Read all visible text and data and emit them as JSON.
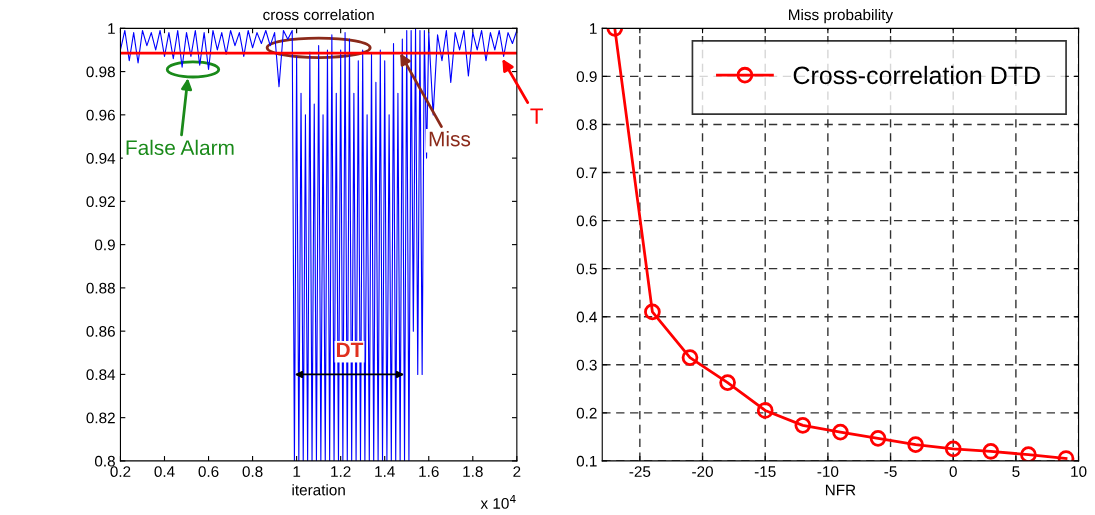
{
  "chart_data": [
    {
      "type": "line",
      "title": "cross correlation",
      "xlabel": "iteration",
      "series": [
        {
          "color": "#0000ff",
          "marker": "none",
          "x": [
            0.2,
            0.22,
            0.24,
            0.26,
            0.28,
            0.3,
            0.32,
            0.34,
            0.36,
            0.38,
            0.4,
            0.42,
            0.44,
            0.46,
            0.48,
            0.5,
            0.52,
            0.54,
            0.56,
            0.58,
            0.6,
            0.62,
            0.64,
            0.66,
            0.68,
            0.7,
            0.72,
            0.74,
            0.76,
            0.78,
            0.8,
            0.82,
            0.84,
            0.86,
            0.88,
            0.9,
            0.92,
            0.94,
            0.96,
            0.98,
            0.99,
            1.0,
            1.01,
            1.02,
            1.03,
            1.04,
            1.05,
            1.06,
            1.07,
            1.08,
            1.09,
            1.1,
            1.11,
            1.12,
            1.13,
            1.14,
            1.15,
            1.16,
            1.17,
            1.18,
            1.19,
            1.2,
            1.21,
            1.22,
            1.23,
            1.24,
            1.25,
            1.26,
            1.27,
            1.28,
            1.29,
            1.3,
            1.31,
            1.32,
            1.33,
            1.34,
            1.35,
            1.36,
            1.37,
            1.38,
            1.39,
            1.4,
            1.41,
            1.42,
            1.43,
            1.44,
            1.45,
            1.46,
            1.47,
            1.48,
            1.49,
            1.5,
            1.51,
            1.52,
            1.53,
            1.54,
            1.55,
            1.56,
            1.57,
            1.58,
            1.59,
            1.6,
            1.62,
            1.64,
            1.66,
            1.68,
            1.7,
            1.72,
            1.74,
            1.76,
            1.78,
            1.8,
            1.82,
            1.84,
            1.86,
            1.88,
            1.9,
            1.92,
            1.94,
            1.96,
            1.98,
            2.0
          ],
          "values": [
            0.99,
            0.999,
            0.985,
            0.998,
            0.984,
            0.999,
            0.992,
            0.998,
            0.99,
            0.999,
            0.987,
            0.998,
            0.986,
            0.999,
            0.982,
            0.998,
            0.987,
            0.999,
            0.983,
            0.998,
            0.981,
            0.999,
            0.99,
            0.998,
            0.988,
            0.999,
            0.992,
            0.998,
            0.987,
            0.999,
            0.991,
            0.998,
            0.993,
            0.999,
            0.992,
            0.998,
            0.973,
            0.999,
            0.995,
            0.999,
            0.8,
            0.987,
            0.8,
            0.97,
            0.8,
            0.96,
            0.8,
            0.989,
            0.8,
            0.965,
            0.8,
            0.992,
            0.8,
            0.96,
            0.8,
            0.99,
            0.8,
            0.997,
            0.8,
            0.97,
            0.8,
            0.99,
            0.8,
            0.998,
            0.8,
            0.995,
            0.8,
            0.97,
            0.8,
            0.985,
            0.8,
            0.99,
            0.8,
            0.96,
            0.8,
            0.988,
            0.8,
            0.975,
            0.8,
            0.99,
            0.8,
            0.985,
            0.8,
            0.96,
            0.8,
            0.993,
            0.8,
            0.97,
            0.8,
            0.995,
            0.8,
            0.999,
            0.8,
            0.999,
            0.86,
            1.0,
            0.84,
            0.999,
            0.84,
            0.999,
            0.94,
            0.998,
            0.96,
            0.997,
            0.985,
            0.999,
            0.975,
            0.998,
            0.99,
            0.999,
            0.978,
            0.998,
            0.99,
            0.999,
            0.985,
            0.998,
            0.99,
            0.999,
            0.987,
            0.998,
            0.993,
            0.999
          ]
        }
      ],
      "xlim": [
        0.2,
        2
      ],
      "xticks": [
        0.2,
        0.4,
        0.6,
        0.8,
        1,
        1.2,
        1.4,
        1.6,
        1.8,
        2
      ],
      "ylim": [
        0.8,
        1
      ],
      "yticks": [
        0.8,
        0.82,
        0.84,
        0.86,
        0.88,
        0.9,
        0.92,
        0.94,
        0.96,
        0.98,
        1
      ],
      "ref_lines": [
        {
          "axis": "y",
          "value": 0.9885,
          "label": "T",
          "color": "#ff0000"
        }
      ],
      "annotations": [
        "False Alarm",
        {
          "text": "Miss",
          "x": 1.47,
          "y": 0.9885
        },
        {
          "text": "DT",
          "x": 1.24,
          "y": 0.84
        },
        "x 10$^{4}$"
      ],
      "grid": false,
      "legend": false
    },
    {
      "type": "line",
      "title": "Miss probability",
      "xlabel": "NFR",
      "series": [
        {
          "name": "Cross-correlation DTD",
          "color": "#ff0000",
          "marker": "circle",
          "x": [
            -27,
            -24,
            -21,
            -18,
            -15,
            -12,
            -9,
            -6,
            -3,
            0,
            3,
            6,
            9
          ],
          "values": [
            1.0,
            0.41,
            0.315,
            0.263,
            0.205,
            0.174,
            0.16,
            0.147,
            0.134,
            0.125,
            0.12,
            0.113,
            0.105
          ]
        }
      ],
      "xlim": [
        -28,
        10
      ],
      "xticks": [
        -25,
        -20,
        -15,
        -10,
        -5,
        0,
        5,
        10
      ],
      "ylim": [
        0.1,
        1
      ],
      "yticks": [
        0.1,
        0.2,
        0.3,
        0.4,
        0.5,
        0.6,
        0.7,
        0.8,
        0.9,
        1
      ],
      "grid": true,
      "legend": "top right"
    }
  ]
}
